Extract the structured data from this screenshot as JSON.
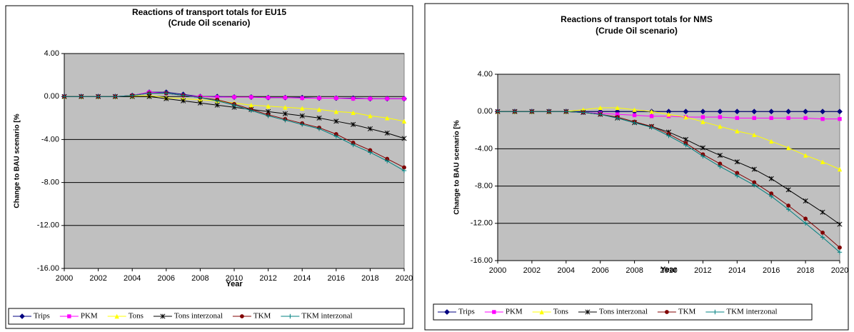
{
  "chart_data": [
    {
      "type": "line",
      "title": "Reactions of transport totals for EU15",
      "subtitle": "(Crude Oil scenario)",
      "x_label": "Year",
      "y_label": "Change to BAU scenario [%",
      "x": [
        2000,
        2001,
        2002,
        2003,
        2004,
        2005,
        2006,
        2007,
        2008,
        2009,
        2010,
        2011,
        2012,
        2013,
        2014,
        2015,
        2016,
        2017,
        2018,
        2019,
        2020
      ],
      "xlim": [
        2000,
        2020
      ],
      "xticks": [
        2000,
        2002,
        2004,
        2006,
        2008,
        2010,
        2012,
        2014,
        2016,
        2018,
        2020
      ],
      "ylim": [
        -16,
        4
      ],
      "yticks": [
        {
          "value": -16,
          "label": "-16.00"
        },
        {
          "value": -12,
          "label": "-12.00"
        },
        {
          "value": -8,
          "label": "-8.00"
        },
        {
          "value": -4,
          "label": "-4.00"
        },
        {
          "value": 0,
          "label": "0.00"
        },
        {
          "value": 4,
          "label": "4.00"
        }
      ],
      "grid": true,
      "legend": "bottom",
      "plot_background": "#c0c0c0",
      "series": [
        {
          "name": "Trips",
          "color": "#000080",
          "marker": "diamond",
          "values": [
            0,
            0,
            0,
            0,
            0.1,
            0.4,
            0.4,
            0.2,
            0,
            0,
            -0.05,
            -0.05,
            -0.1,
            -0.1,
            -0.1,
            -0.15,
            -0.15,
            -0.15,
            -0.2,
            -0.2,
            -0.2
          ]
        },
        {
          "name": "PKM",
          "color": "#ff00ff",
          "marker": "square",
          "values": [
            0,
            0,
            0,
            0,
            0.1,
            0.4,
            0.3,
            0.1,
            0,
            -0.05,
            -0.05,
            -0.05,
            -0.1,
            -0.1,
            -0.15,
            -0.15,
            -0.15,
            -0.2,
            -0.2,
            -0.2,
            -0.2
          ]
        },
        {
          "name": "Tons",
          "color": "#ffff00",
          "marker": "triangle",
          "values": [
            0,
            0,
            0,
            0,
            0.05,
            0.1,
            -0.1,
            -0.2,
            -0.3,
            -0.4,
            -0.6,
            -0.8,
            -0.9,
            -1.0,
            -1.1,
            -1.2,
            -1.4,
            -1.5,
            -1.8,
            -2.0,
            -2.3
          ]
        },
        {
          "name": "Tons interzonal",
          "color": "#000000",
          "marker": "star",
          "values": [
            0,
            0,
            0,
            0,
            0,
            0,
            -0.2,
            -0.4,
            -0.6,
            -0.8,
            -1.0,
            -1.2,
            -1.4,
            -1.6,
            -1.8,
            -2.0,
            -2.3,
            -2.6,
            -3.0,
            -3.4,
            -3.9
          ]
        },
        {
          "name": "TKM",
          "color": "#800000",
          "marker": "circle",
          "values": [
            0,
            0,
            0,
            0,
            0.1,
            0.3,
            0.3,
            0.1,
            -0.1,
            -0.3,
            -0.7,
            -1.2,
            -1.7,
            -2.1,
            -2.5,
            -2.9,
            -3.5,
            -4.3,
            -5.0,
            -5.8,
            -6.6
          ]
        },
        {
          "name": "TKM interzonal",
          "color": "#008080",
          "marker": "plus",
          "values": [
            0,
            0,
            0,
            0,
            0.1,
            0.3,
            0.3,
            0.1,
            -0.1,
            -0.4,
            -0.8,
            -1.3,
            -1.8,
            -2.2,
            -2.6,
            -3.0,
            -3.7,
            -4.5,
            -5.2,
            -6.0,
            -6.9
          ]
        }
      ]
    },
    {
      "type": "line",
      "title": "Reactions of transport totals for NMS",
      "subtitle": "(Crude Oil scenario)",
      "x_label": "Year",
      "y_label": "Change to BAU scenario [%",
      "x": [
        2000,
        2001,
        2002,
        2003,
        2004,
        2005,
        2006,
        2007,
        2008,
        2009,
        2010,
        2011,
        2012,
        2013,
        2014,
        2015,
        2016,
        2017,
        2018,
        2019,
        2020
      ],
      "xlim": [
        2000,
        2020
      ],
      "xticks": [
        2000,
        2002,
        2004,
        2006,
        2008,
        2010,
        2012,
        2014,
        2016,
        2018,
        2020
      ],
      "ylim": [
        -16,
        4
      ],
      "yticks": [
        {
          "value": -16,
          "label": "-16.00"
        },
        {
          "value": -12,
          "label": "-12.00"
        },
        {
          "value": -8,
          "label": "-8.00"
        },
        {
          "value": -4,
          "label": "-4.00"
        },
        {
          "value": 0,
          "label": "0.00"
        },
        {
          "value": 4,
          "label": "4.00"
        }
      ],
      "grid": true,
      "legend": "bottom",
      "plot_background": "#c0c0c0",
      "series": [
        {
          "name": "Trips",
          "color": "#000080",
          "marker": "diamond",
          "values": [
            0,
            0,
            0,
            0,
            0,
            0,
            0,
            0,
            0,
            0,
            0,
            0,
            0,
            0,
            0,
            0,
            0,
            0,
            0,
            0,
            0
          ]
        },
        {
          "name": "PKM",
          "color": "#ff00ff",
          "marker": "square",
          "values": [
            0,
            0,
            0,
            0,
            0,
            -0.1,
            -0.2,
            -0.3,
            -0.4,
            -0.5,
            -0.5,
            -0.6,
            -0.6,
            -0.6,
            -0.7,
            -0.7,
            -0.7,
            -0.7,
            -0.7,
            -0.8,
            -0.8
          ]
        },
        {
          "name": "Tons",
          "color": "#ffff00",
          "marker": "triangle",
          "values": [
            0,
            0,
            0,
            0,
            0,
            0.2,
            0.4,
            0.4,
            0.2,
            0,
            -0.3,
            -0.6,
            -1.1,
            -1.6,
            -2.1,
            -2.5,
            -3.2,
            -3.9,
            -4.7,
            -5.4,
            -6.2
          ]
        },
        {
          "name": "Tons interzonal",
          "color": "#000000",
          "marker": "star",
          "values": [
            0,
            0,
            0,
            0,
            0,
            -0.1,
            -0.3,
            -0.7,
            -1.2,
            -1.6,
            -2.2,
            -3.0,
            -3.9,
            -4.7,
            -5.4,
            -6.2,
            -7.2,
            -8.4,
            -9.6,
            -10.8,
            -12.1
          ]
        },
        {
          "name": "TKM",
          "color": "#800000",
          "marker": "circle",
          "values": [
            0,
            0,
            0,
            0,
            0,
            -0.1,
            -0.3,
            -0.6,
            -1.1,
            -1.6,
            -2.4,
            -3.4,
            -4.6,
            -5.6,
            -6.6,
            -7.6,
            -8.8,
            -10.1,
            -11.5,
            -13.0,
            -14.6
          ]
        },
        {
          "name": "TKM interzonal",
          "color": "#008080",
          "marker": "plus",
          "values": [
            0,
            0,
            0,
            0,
            0,
            -0.1,
            -0.3,
            -0.7,
            -1.2,
            -1.7,
            -2.6,
            -3.6,
            -4.8,
            -5.9,
            -6.9,
            -7.9,
            -9.1,
            -10.5,
            -12.0,
            -13.5,
            -15.1
          ]
        }
      ]
    }
  ]
}
